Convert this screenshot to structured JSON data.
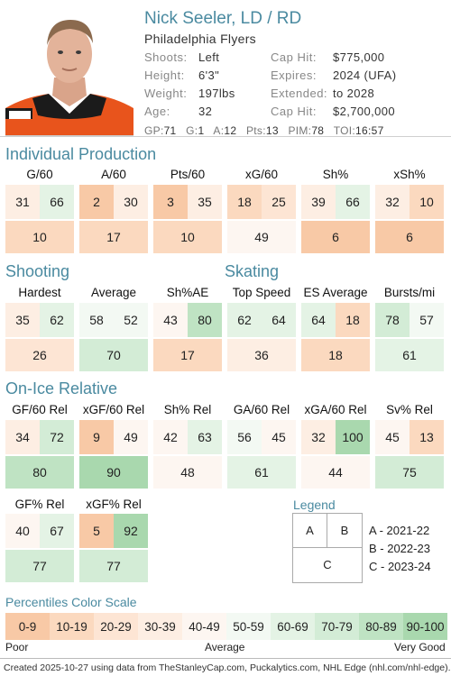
{
  "player": {
    "name": "Nick Seeler, LD / RD",
    "team": "Philadelphia Flyers",
    "info_left": [
      {
        "label": "Shoots:",
        "value": "Left"
      },
      {
        "label": "Height:",
        "value": "6'3\""
      },
      {
        "label": "Weight:",
        "value": "197lbs"
      },
      {
        "label": "Age:",
        "value": "32"
      }
    ],
    "info_right": [
      {
        "label": "Cap Hit:",
        "value": "$775,000"
      },
      {
        "label": "Expires:",
        "value": "2024 (UFA)"
      },
      {
        "label": "Extended:",
        "value": "to 2028"
      },
      {
        "label": "Cap Hit:",
        "value": "$2,700,000"
      }
    ],
    "statline": [
      {
        "k": "GP:",
        "v": "71"
      },
      {
        "k": "G:",
        "v": "1"
      },
      {
        "k": "A:",
        "v": "12"
      },
      {
        "k": "Pts:",
        "v": "13"
      },
      {
        "k": "PIM:",
        "v": "78"
      },
      {
        "k": "TOI:",
        "v": "16:57"
      }
    ]
  },
  "sections": {
    "production": "Individual Production",
    "shooting": "Shooting",
    "skating": "Skating",
    "onice": "On-Ice Relative"
  },
  "production": [
    {
      "label": "G/60",
      "a": 31,
      "b": 66,
      "c": 10
    },
    {
      "label": "A/60",
      "a": 2,
      "b": 30,
      "c": 17
    },
    {
      "label": "Pts/60",
      "a": 3,
      "b": 35,
      "c": 10
    },
    {
      "label": "xG/60",
      "a": 18,
      "b": 25,
      "c": 49
    },
    {
      "label": "Sh%",
      "a": 39,
      "b": 66,
      "c": 6
    },
    {
      "label": "xSh%",
      "a": 32,
      "b": 10,
      "c": 6
    }
  ],
  "shooting_skating": [
    {
      "label": "Hardest",
      "a": 35,
      "b": 62,
      "c": 26
    },
    {
      "label": "Average",
      "a": 58,
      "b": 52,
      "c": 70
    },
    {
      "label": "Sh%AE",
      "a": 43,
      "b": 80,
      "c": 17
    },
    {
      "label": "Top Speed",
      "a": 62,
      "b": 64,
      "c": 36
    },
    {
      "label": "ES Average",
      "a": 64,
      "b": 18,
      "c": 18
    },
    {
      "label": "Bursts/mi",
      "a": 78,
      "b": 57,
      "c": 61
    }
  ],
  "onice": [
    {
      "label": "GF/60 Rel",
      "a": 34,
      "b": 72,
      "c": 80
    },
    {
      "label": "xGF/60 Rel",
      "a": 9,
      "b": 49,
      "c": 90
    },
    {
      "label": "Sh% Rel",
      "a": 42,
      "b": 63,
      "c": 48
    },
    {
      "label": "GA/60 Rel",
      "a": 56,
      "b": 45,
      "c": 61
    },
    {
      "label": "xGA/60 Rel",
      "a": 32,
      "b": 100,
      "c": 44
    },
    {
      "label": "Sv% Rel",
      "a": 45,
      "b": 13,
      "c": 75
    }
  ],
  "share": [
    {
      "label": "GF% Rel",
      "a": 40,
      "b": 67,
      "c": 77
    },
    {
      "label": "xGF% Rel",
      "a": 5,
      "b": 92,
      "c": 77
    }
  ],
  "legend": {
    "title": "Legend",
    "a": "A",
    "b": "B",
    "c": "C",
    "lines": [
      "A - 2021-22",
      "B - 2022-23",
      "C - 2023-24"
    ]
  },
  "scale": {
    "title": "Percentiles Color Scale",
    "bins": [
      "0-9",
      "10-19",
      "20-29",
      "30-39",
      "40-49",
      "50-59",
      "60-69",
      "70-79",
      "80-89",
      "90-100"
    ],
    "colors": [
      "#f8c9a6",
      "#fbd9bf",
      "#fde5d4",
      "#fdeee3",
      "#fdf6f1",
      "#f3f9f3",
      "#e4f3e5",
      "#d3ecd6",
      "#bfe3c3",
      "#a9d8ae"
    ],
    "poor": "Poor",
    "average": "Average",
    "very_good": "Very Good"
  },
  "footer": "Created 2025-10-27 using data from TheStanleyCap.com, Puckalytics.com, NHL Edge (nhl.com/nhl-edge)."
}
